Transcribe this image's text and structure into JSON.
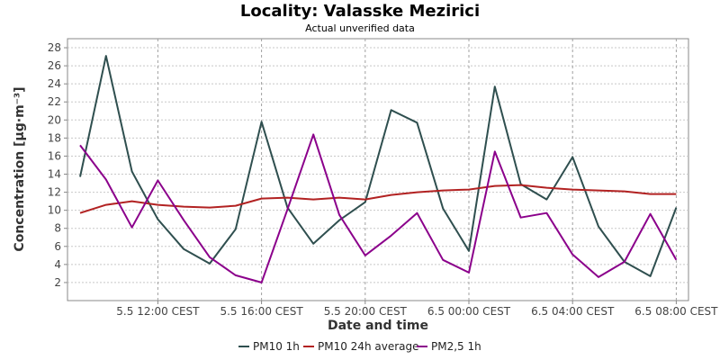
{
  "title": "Locality: Valasske Mezirici",
  "subtitle": "Actual unverified data",
  "chart_data": {
    "type": "line",
    "xlabel": "Date and time",
    "ylabel": "Concentration [µg·m⁻³]",
    "ylim": [
      0,
      29
    ],
    "yticks": [
      2,
      4,
      6,
      8,
      10,
      12,
      14,
      16,
      18,
      20,
      22,
      24,
      26,
      28
    ],
    "x_labels": [
      "5.5 12:00 CEST",
      "5.5 16:00 CEST",
      "5.5 20:00 CEST",
      "6.5 00:00 CEST",
      "6.5 04:00 CEST",
      "6.5 08:00 CEST"
    ],
    "grid": true,
    "legend_position": "bottom",
    "series": [
      {
        "name": "PM10 1h",
        "color": "#2f4f4f",
        "values": [
          13.7,
          27.1,
          14.3,
          9.0,
          5.7,
          4.1,
          7.9,
          19.8,
          10.3,
          6.3,
          8.9,
          10.9,
          21.1,
          19.7,
          10.2,
          5.5,
          23.7,
          12.9,
          11.2,
          15.9,
          8.2,
          4.3,
          2.7,
          10.3
        ]
      },
      {
        "name": "PM10 24h average",
        "color": "#b22222",
        "values": [
          9.7,
          10.6,
          11.0,
          10.6,
          10.4,
          10.3,
          10.5,
          11.3,
          11.4,
          11.2,
          11.4,
          11.2,
          11.7,
          12.0,
          12.2,
          12.3,
          12.7,
          12.8,
          12.5,
          12.3,
          12.2,
          12.1,
          11.8,
          11.8
        ]
      },
      {
        "name": "PM2,5 1h",
        "color": "#8b008b",
        "values": [
          17.2,
          13.4,
          8.1,
          13.3,
          8.9,
          4.8,
          2.8,
          2.0,
          10.1,
          18.4,
          9.5,
          5.0,
          7.2,
          9.7,
          4.5,
          3.1,
          16.5,
          9.2,
          9.7,
          5.1,
          2.6,
          4.3,
          9.6,
          4.5
        ]
      }
    ]
  }
}
